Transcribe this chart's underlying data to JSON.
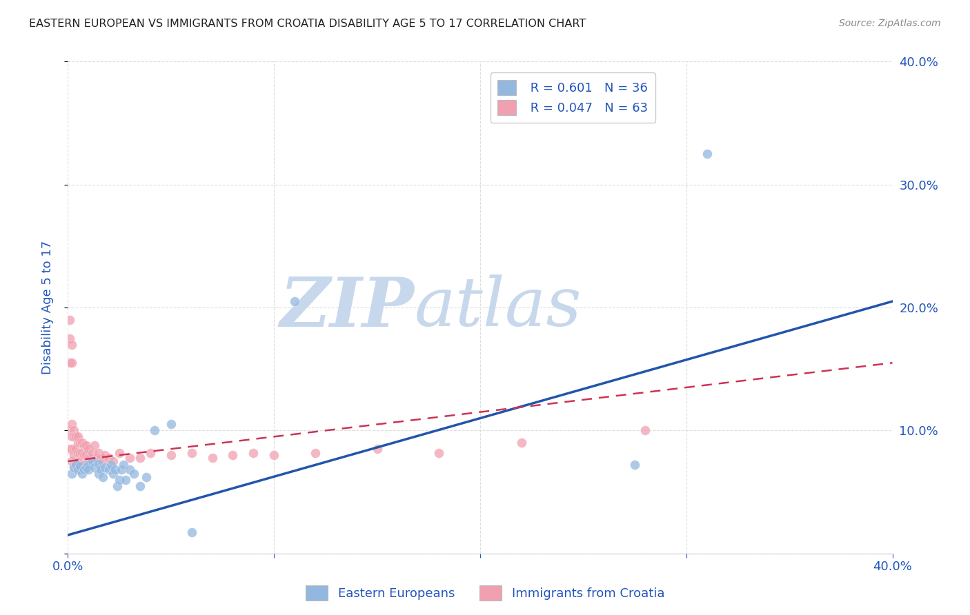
{
  "title": "EASTERN EUROPEAN VS IMMIGRANTS FROM CROATIA DISABILITY AGE 5 TO 17 CORRELATION CHART",
  "source": "Source: ZipAtlas.com",
  "ylabel": "Disability Age 5 to 17",
  "xlim": [
    0.0,
    0.4
  ],
  "ylim": [
    0.0,
    0.4
  ],
  "xticks": [
    0.0,
    0.1,
    0.2,
    0.3,
    0.4
  ],
  "yticks": [
    0.0,
    0.1,
    0.2,
    0.3,
    0.4
  ],
  "xtick_labels": [
    "0.0%",
    "",
    "",
    "",
    "40.0%"
  ],
  "ytick_labels_right": [
    "",
    "10.0%",
    "20.0%",
    "30.0%",
    "40.0%"
  ],
  "legend_label1": "Eastern Europeans",
  "legend_label2": "Immigrants from Croatia",
  "R1": "0.601",
  "N1": "36",
  "R2": "0.047",
  "N2": "63",
  "blue_color": "#93B8E0",
  "pink_color": "#F0A0B0",
  "blue_line_color": "#2255AA",
  "pink_line_color": "#CC3355",
  "watermark_line1": "ZIP",
  "watermark_line2": "atlas",
  "watermark_color": "#C8D8EC",
  "background_color": "#FFFFFF",
  "grid_color": "#DDDDDD",
  "title_color": "#222222",
  "axis_label_color": "#2255BB",
  "blue_scatter_x": [
    0.002,
    0.003,
    0.004,
    0.005,
    0.006,
    0.007,
    0.008,
    0.009,
    0.01,
    0.01,
    0.012,
    0.013,
    0.015,
    0.015,
    0.016,
    0.017,
    0.018,
    0.02,
    0.021,
    0.022,
    0.023,
    0.024,
    0.025,
    0.026,
    0.027,
    0.028,
    0.03,
    0.032,
    0.035,
    0.038,
    0.042,
    0.05,
    0.06,
    0.11,
    0.275,
    0.31
  ],
  "blue_scatter_y": [
    0.065,
    0.07,
    0.072,
    0.068,
    0.071,
    0.065,
    0.068,
    0.07,
    0.072,
    0.068,
    0.075,
    0.07,
    0.073,
    0.065,
    0.068,
    0.062,
    0.07,
    0.068,
    0.072,
    0.065,
    0.068,
    0.055,
    0.06,
    0.068,
    0.072,
    0.06,
    0.068,
    0.065,
    0.055,
    0.062,
    0.1,
    0.105,
    0.017,
    0.205,
    0.072,
    0.325
  ],
  "pink_scatter_x": [
    0.001,
    0.001,
    0.001,
    0.001,
    0.001,
    0.002,
    0.002,
    0.002,
    0.002,
    0.002,
    0.002,
    0.003,
    0.003,
    0.003,
    0.003,
    0.003,
    0.004,
    0.004,
    0.004,
    0.005,
    0.005,
    0.005,
    0.005,
    0.005,
    0.006,
    0.006,
    0.006,
    0.006,
    0.007,
    0.007,
    0.007,
    0.008,
    0.008,
    0.008,
    0.009,
    0.009,
    0.01,
    0.01,
    0.011,
    0.012,
    0.013,
    0.014,
    0.015,
    0.016,
    0.017,
    0.018,
    0.02,
    0.022,
    0.025,
    0.03,
    0.035,
    0.04,
    0.05,
    0.06,
    0.07,
    0.08,
    0.09,
    0.1,
    0.12,
    0.15,
    0.18,
    0.22,
    0.28
  ],
  "pink_scatter_y": [
    0.19,
    0.175,
    0.155,
    0.1,
    0.085,
    0.17,
    0.155,
    0.105,
    0.095,
    0.085,
    0.075,
    0.1,
    0.095,
    0.085,
    0.08,
    0.072,
    0.095,
    0.085,
    0.072,
    0.09,
    0.082,
    0.075,
    0.095,
    0.07,
    0.09,
    0.082,
    0.075,
    0.068,
    0.09,
    0.082,
    0.072,
    0.088,
    0.08,
    0.072,
    0.088,
    0.08,
    0.085,
    0.078,
    0.078,
    0.082,
    0.088,
    0.078,
    0.082,
    0.078,
    0.075,
    0.08,
    0.078,
    0.075,
    0.082,
    0.078,
    0.078,
    0.082,
    0.08,
    0.082,
    0.078,
    0.08,
    0.082,
    0.08,
    0.082,
    0.085,
    0.082,
    0.09,
    0.1
  ],
  "blue_line_x0": 0.0,
  "blue_line_x1": 0.4,
  "blue_line_y0": 0.015,
  "blue_line_y1": 0.205,
  "pink_line_x0": 0.0,
  "pink_line_x1": 0.4,
  "pink_line_y0": 0.075,
  "pink_line_y1": 0.155
}
